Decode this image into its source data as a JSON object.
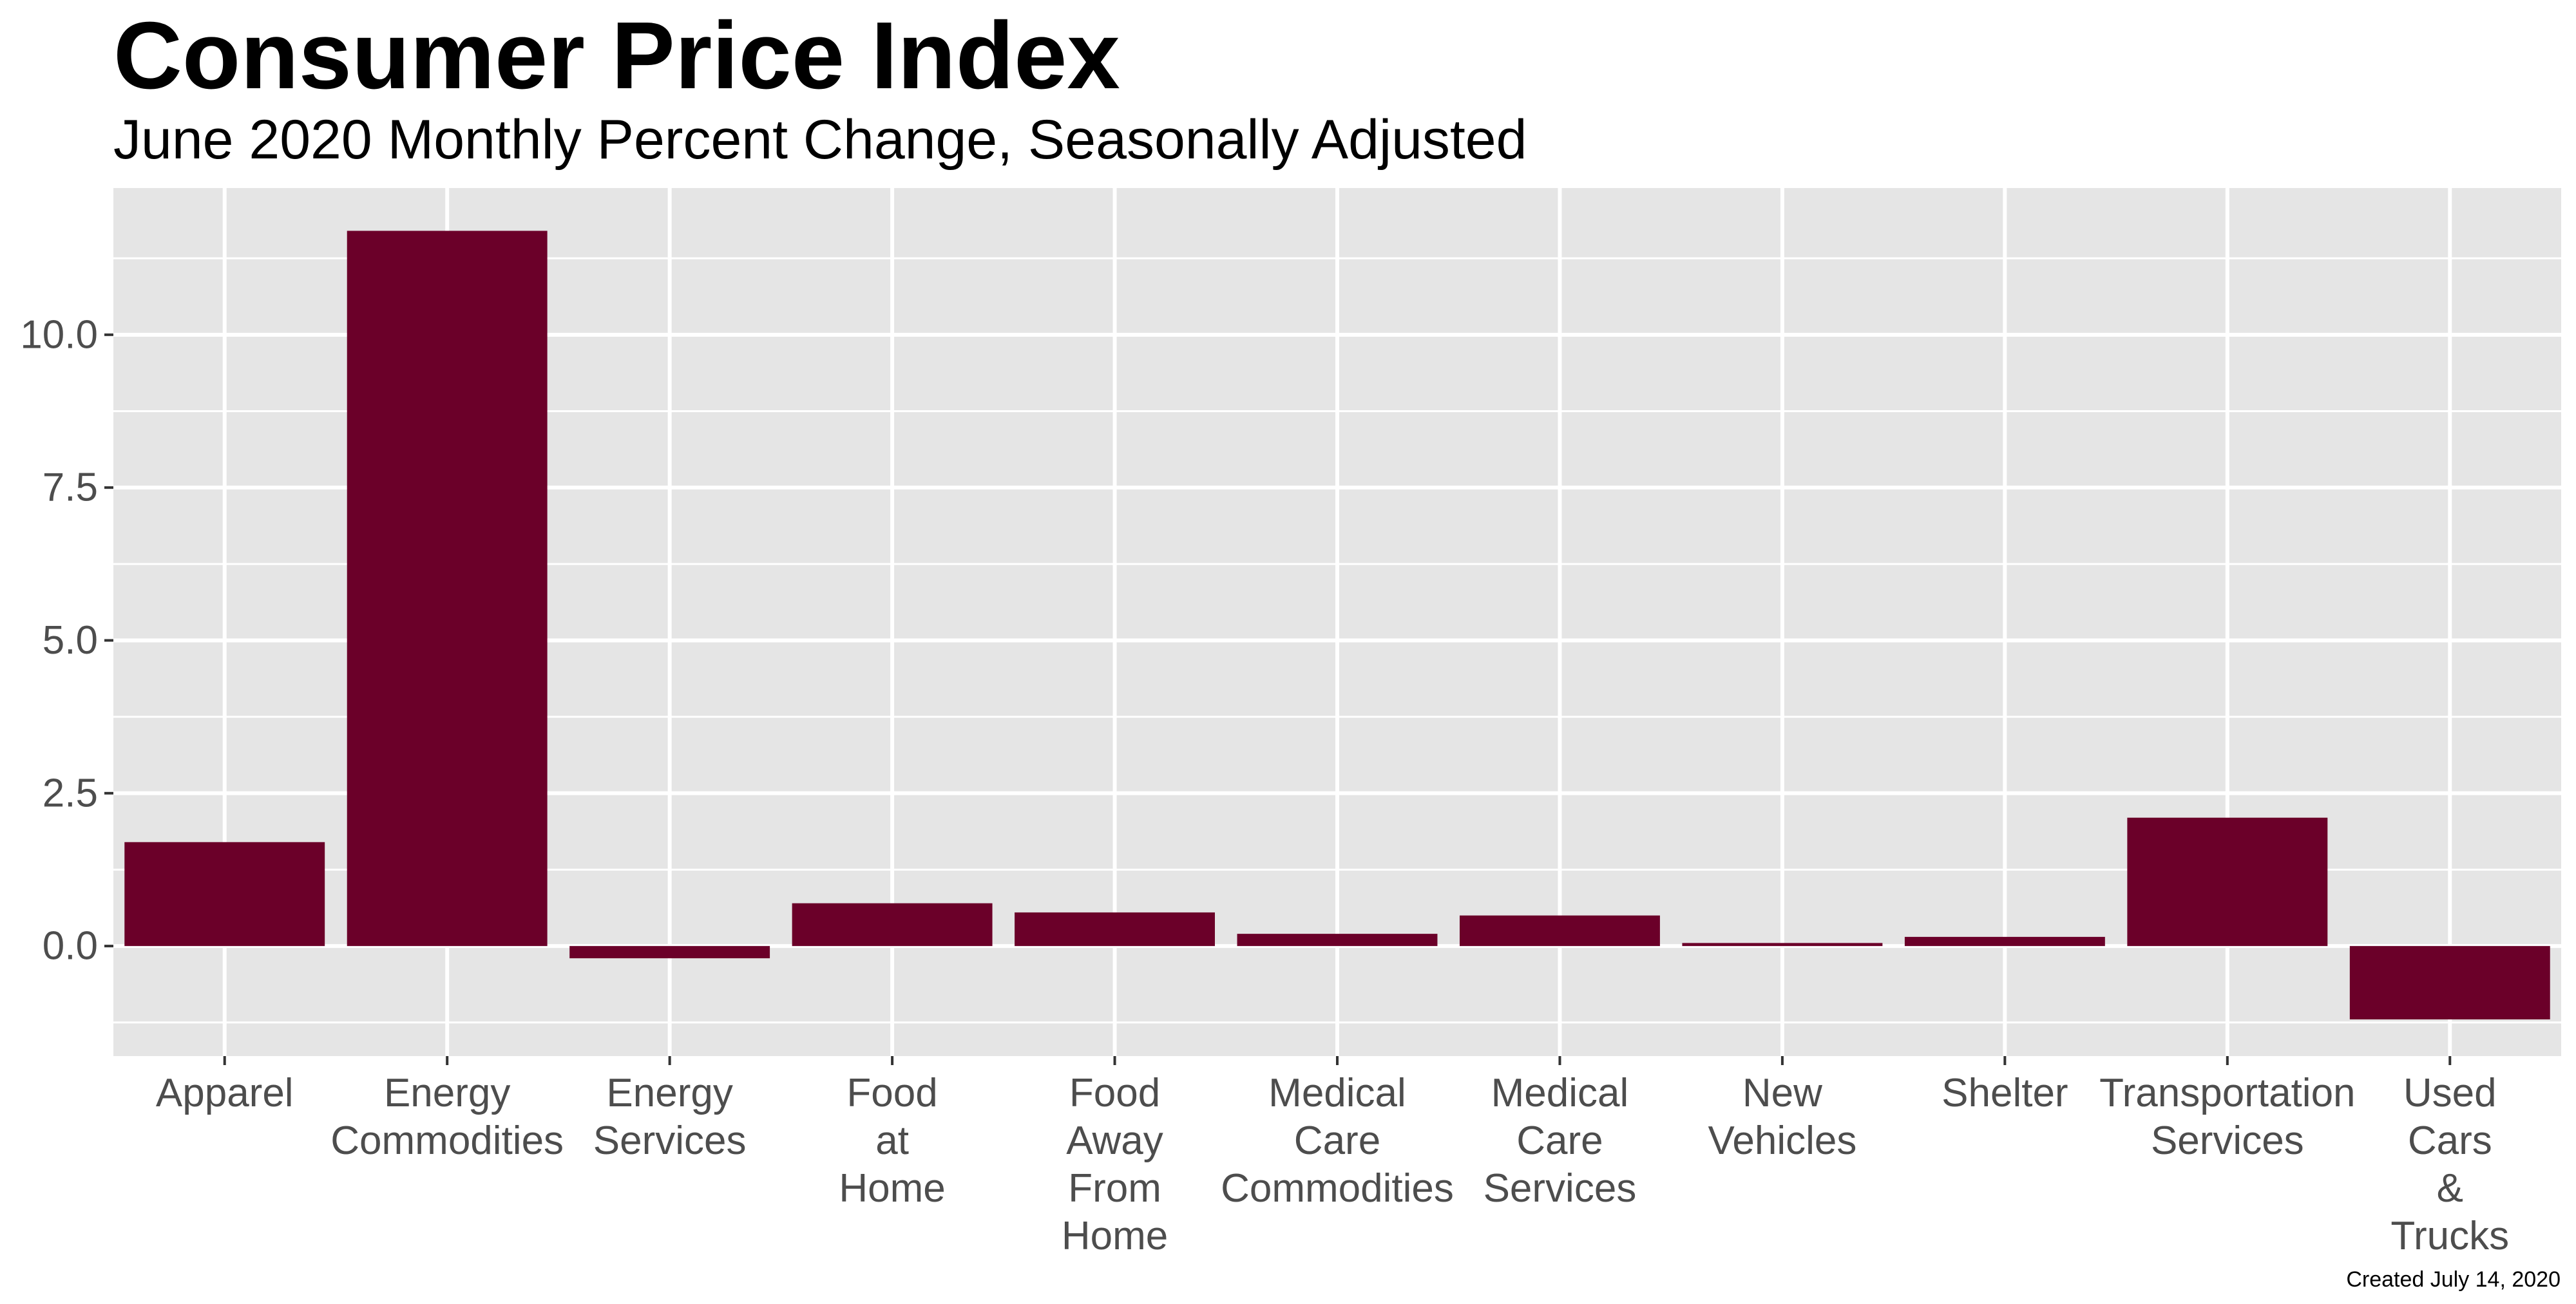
{
  "chart_data": {
    "type": "bar",
    "title": "Consumer Price Index",
    "subtitle": "June 2020 Monthly Percent Change, Seasonally Adjusted",
    "xlabel": "",
    "ylabel": "",
    "categories": [
      [
        "Apparel"
      ],
      [
        "Energy",
        "Commodities"
      ],
      [
        "Energy",
        "Services"
      ],
      [
        "Food",
        "at",
        "Home"
      ],
      [
        "Food",
        "Away",
        "From",
        "Home"
      ],
      [
        "Medical",
        "Care",
        "Commodities"
      ],
      [
        "Medical",
        "Care",
        "Services"
      ],
      [
        "New",
        "Vehicles"
      ],
      [
        "Shelter"
      ],
      [
        "Transportation",
        "Services"
      ],
      [
        "Used",
        "Cars",
        "&",
        "Trucks"
      ]
    ],
    "values": [
      1.7,
      11.7,
      -0.2,
      0.7,
      0.55,
      0.2,
      0.5,
      0.05,
      0.15,
      2.1,
      -1.2
    ],
    "ylim": [
      -1.8,
      12.4
    ],
    "yticks": [
      0.0,
      2.5,
      5.0,
      7.5,
      10.0
    ],
    "ytick_labels": [
      "0.0",
      "2.5",
      "5.0",
      "7.5",
      "10.0"
    ],
    "grid": true,
    "bar_color": "#6b0029",
    "panel_color": "#e5e5e5",
    "grid_color": "#ffffff",
    "caption": "Created July 14, 2020"
  }
}
